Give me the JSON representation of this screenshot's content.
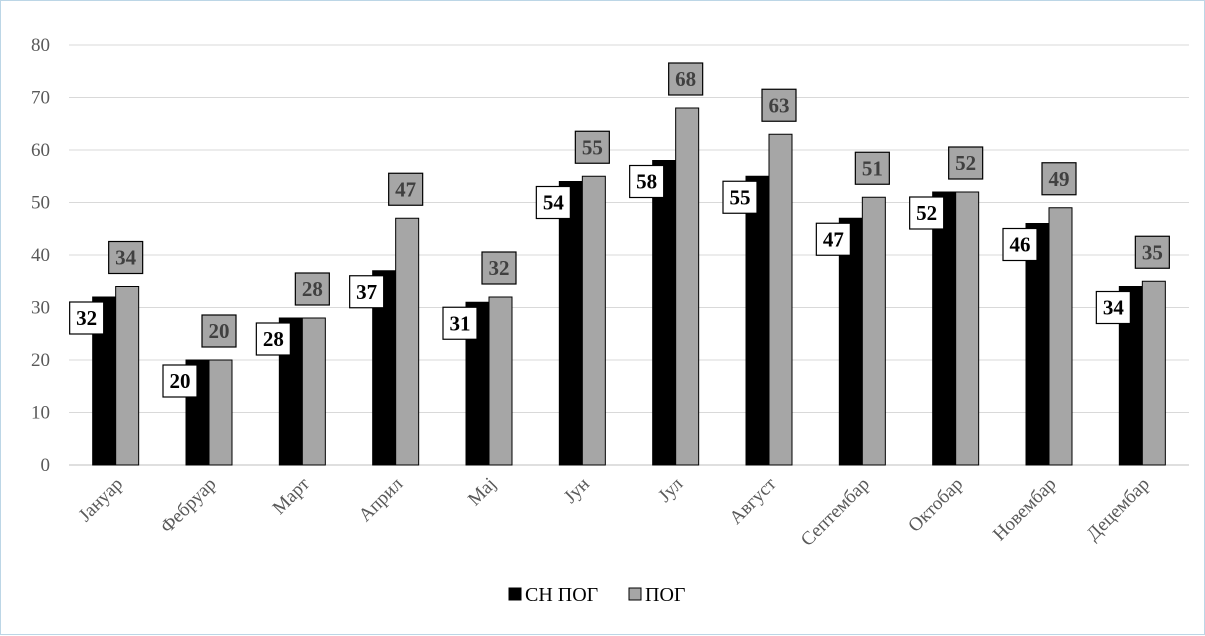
{
  "chart_data": {
    "type": "bar",
    "categories": [
      "Јануар",
      "Фебруар",
      "Март",
      "Април",
      "Мај",
      "Јун",
      "Јул",
      "Август",
      "Септембар",
      "Октобар",
      "Новембар",
      "Децембар"
    ],
    "series": [
      {
        "name": "СН ПОГ",
        "values": [
          32,
          20,
          28,
          37,
          31,
          54,
          58,
          55,
          47,
          52,
          46,
          34
        ],
        "color": "#000000",
        "label_bg": "#ffffff",
        "label_color": "#000000"
      },
      {
        "name": "ПОГ",
        "values": [
          34,
          20,
          28,
          47,
          32,
          55,
          68,
          63,
          51,
          52,
          49,
          35
        ],
        "color": "#a6a6a6",
        "label_bg": "#a6a6a6",
        "label_color": "#404040"
      }
    ],
    "yticks": [
      0,
      10,
      20,
      30,
      40,
      50,
      60,
      70,
      80
    ],
    "ylim": [
      0,
      80
    ],
    "grid": true,
    "legend_position": "bottom",
    "title": "",
    "xlabel": "",
    "ylabel": ""
  }
}
